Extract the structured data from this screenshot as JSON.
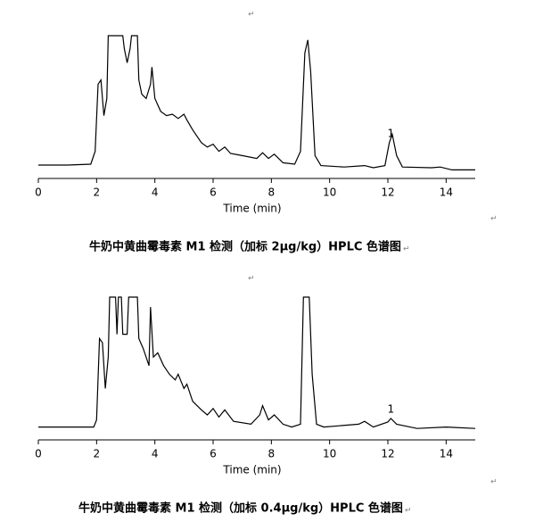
{
  "return_mark": "↵",
  "chart_data": [
    {
      "type": "line",
      "caption": "牛奶中黄曲霉毒素 M1 检测（加标 2μg/kg）HPLC 色谱图",
      "xlabel": "Time (min)",
      "xlim": [
        0,
        15
      ],
      "xticks": [
        0,
        2,
        4,
        6,
        8,
        10,
        12,
        14
      ],
      "ylim": [
        0,
        100
      ],
      "color": "#000000",
      "annotations": [
        {
          "text": "1",
          "x": 12.1
        }
      ],
      "x": [
        0,
        1,
        1.8,
        1.95,
        2.05,
        2.15,
        2.25,
        2.35,
        2.4,
        2.9,
        2.95,
        3.05,
        3.15,
        3.2,
        3.4,
        3.45,
        3.55,
        3.7,
        3.85,
        3.9,
        4.0,
        4.2,
        4.4,
        4.6,
        4.8,
        5.0,
        5.1,
        5.3,
        5.6,
        5.8,
        6.0,
        6.2,
        6.4,
        6.6,
        7.0,
        7.5,
        7.7,
        7.9,
        8.1,
        8.4,
        8.8,
        9.0,
        9.15,
        9.25,
        9.35,
        9.5,
        9.7,
        10.5,
        11.2,
        11.5,
        11.9,
        12.05,
        12.15,
        12.3,
        12.5,
        13.5,
        13.8,
        14.2,
        15
      ],
      "values": [
        9.4,
        9.4,
        10,
        19,
        66,
        69,
        44,
        56,
        100,
        100,
        91,
        81,
        91,
        100,
        100,
        69,
        59,
        56,
        66,
        78,
        56,
        47,
        44,
        45,
        42,
        45,
        41,
        34,
        25,
        22,
        24,
        19,
        22,
        17.5,
        16,
        14,
        18,
        14,
        17,
        11,
        10,
        19,
        88,
        97,
        75,
        16,
        9,
        8,
        9,
        7.5,
        9,
        25,
        31,
        16,
        8,
        7.5,
        8,
        6,
        6
      ]
    },
    {
      "type": "line",
      "caption": "牛奶中黄曲霉毒素 M1 检测（加标 0.4μg/kg）HPLC 色谱图",
      "xlabel": "Time (min)",
      "xlim": [
        0,
        15
      ],
      "xticks": [
        0,
        2,
        4,
        6,
        8,
        10,
        12,
        14
      ],
      "ylim": [
        0,
        100
      ],
      "color": "#000000",
      "annotations": [
        {
          "text": "1",
          "x": 12.1
        }
      ],
      "x": [
        0,
        1.9,
        2.0,
        2.1,
        2.2,
        2.3,
        2.4,
        2.45,
        2.65,
        2.7,
        2.75,
        2.85,
        2.9,
        3.05,
        3.1,
        3.4,
        3.45,
        3.6,
        3.8,
        3.85,
        3.95,
        4.1,
        4.3,
        4.5,
        4.7,
        4.8,
        5.0,
        5.1,
        5.3,
        5.6,
        5.8,
        6.0,
        6.2,
        6.4,
        6.7,
        7.3,
        7.6,
        7.7,
        7.9,
        8.1,
        8.4,
        8.7,
        9.0,
        9.1,
        9.3,
        9.4,
        9.55,
        9.8,
        11.0,
        11.2,
        11.5,
        12.0,
        12.1,
        12.3,
        13.0,
        14.0,
        15
      ],
      "values": [
        9,
        9,
        14,
        71,
        68,
        36,
        58,
        100,
        100,
        74,
        100,
        100,
        74,
        74,
        100,
        100,
        71,
        64,
        52,
        93,
        58,
        61,
        52,
        46,
        42,
        46,
        36,
        39,
        27,
        21,
        17.5,
        22,
        16,
        21,
        13,
        11,
        17.5,
        24,
        14,
        17.5,
        11,
        9,
        11,
        100,
        100,
        46,
        11,
        9,
        11,
        13,
        9,
        12.5,
        15,
        11,
        8,
        9,
        8
      ]
    }
  ]
}
